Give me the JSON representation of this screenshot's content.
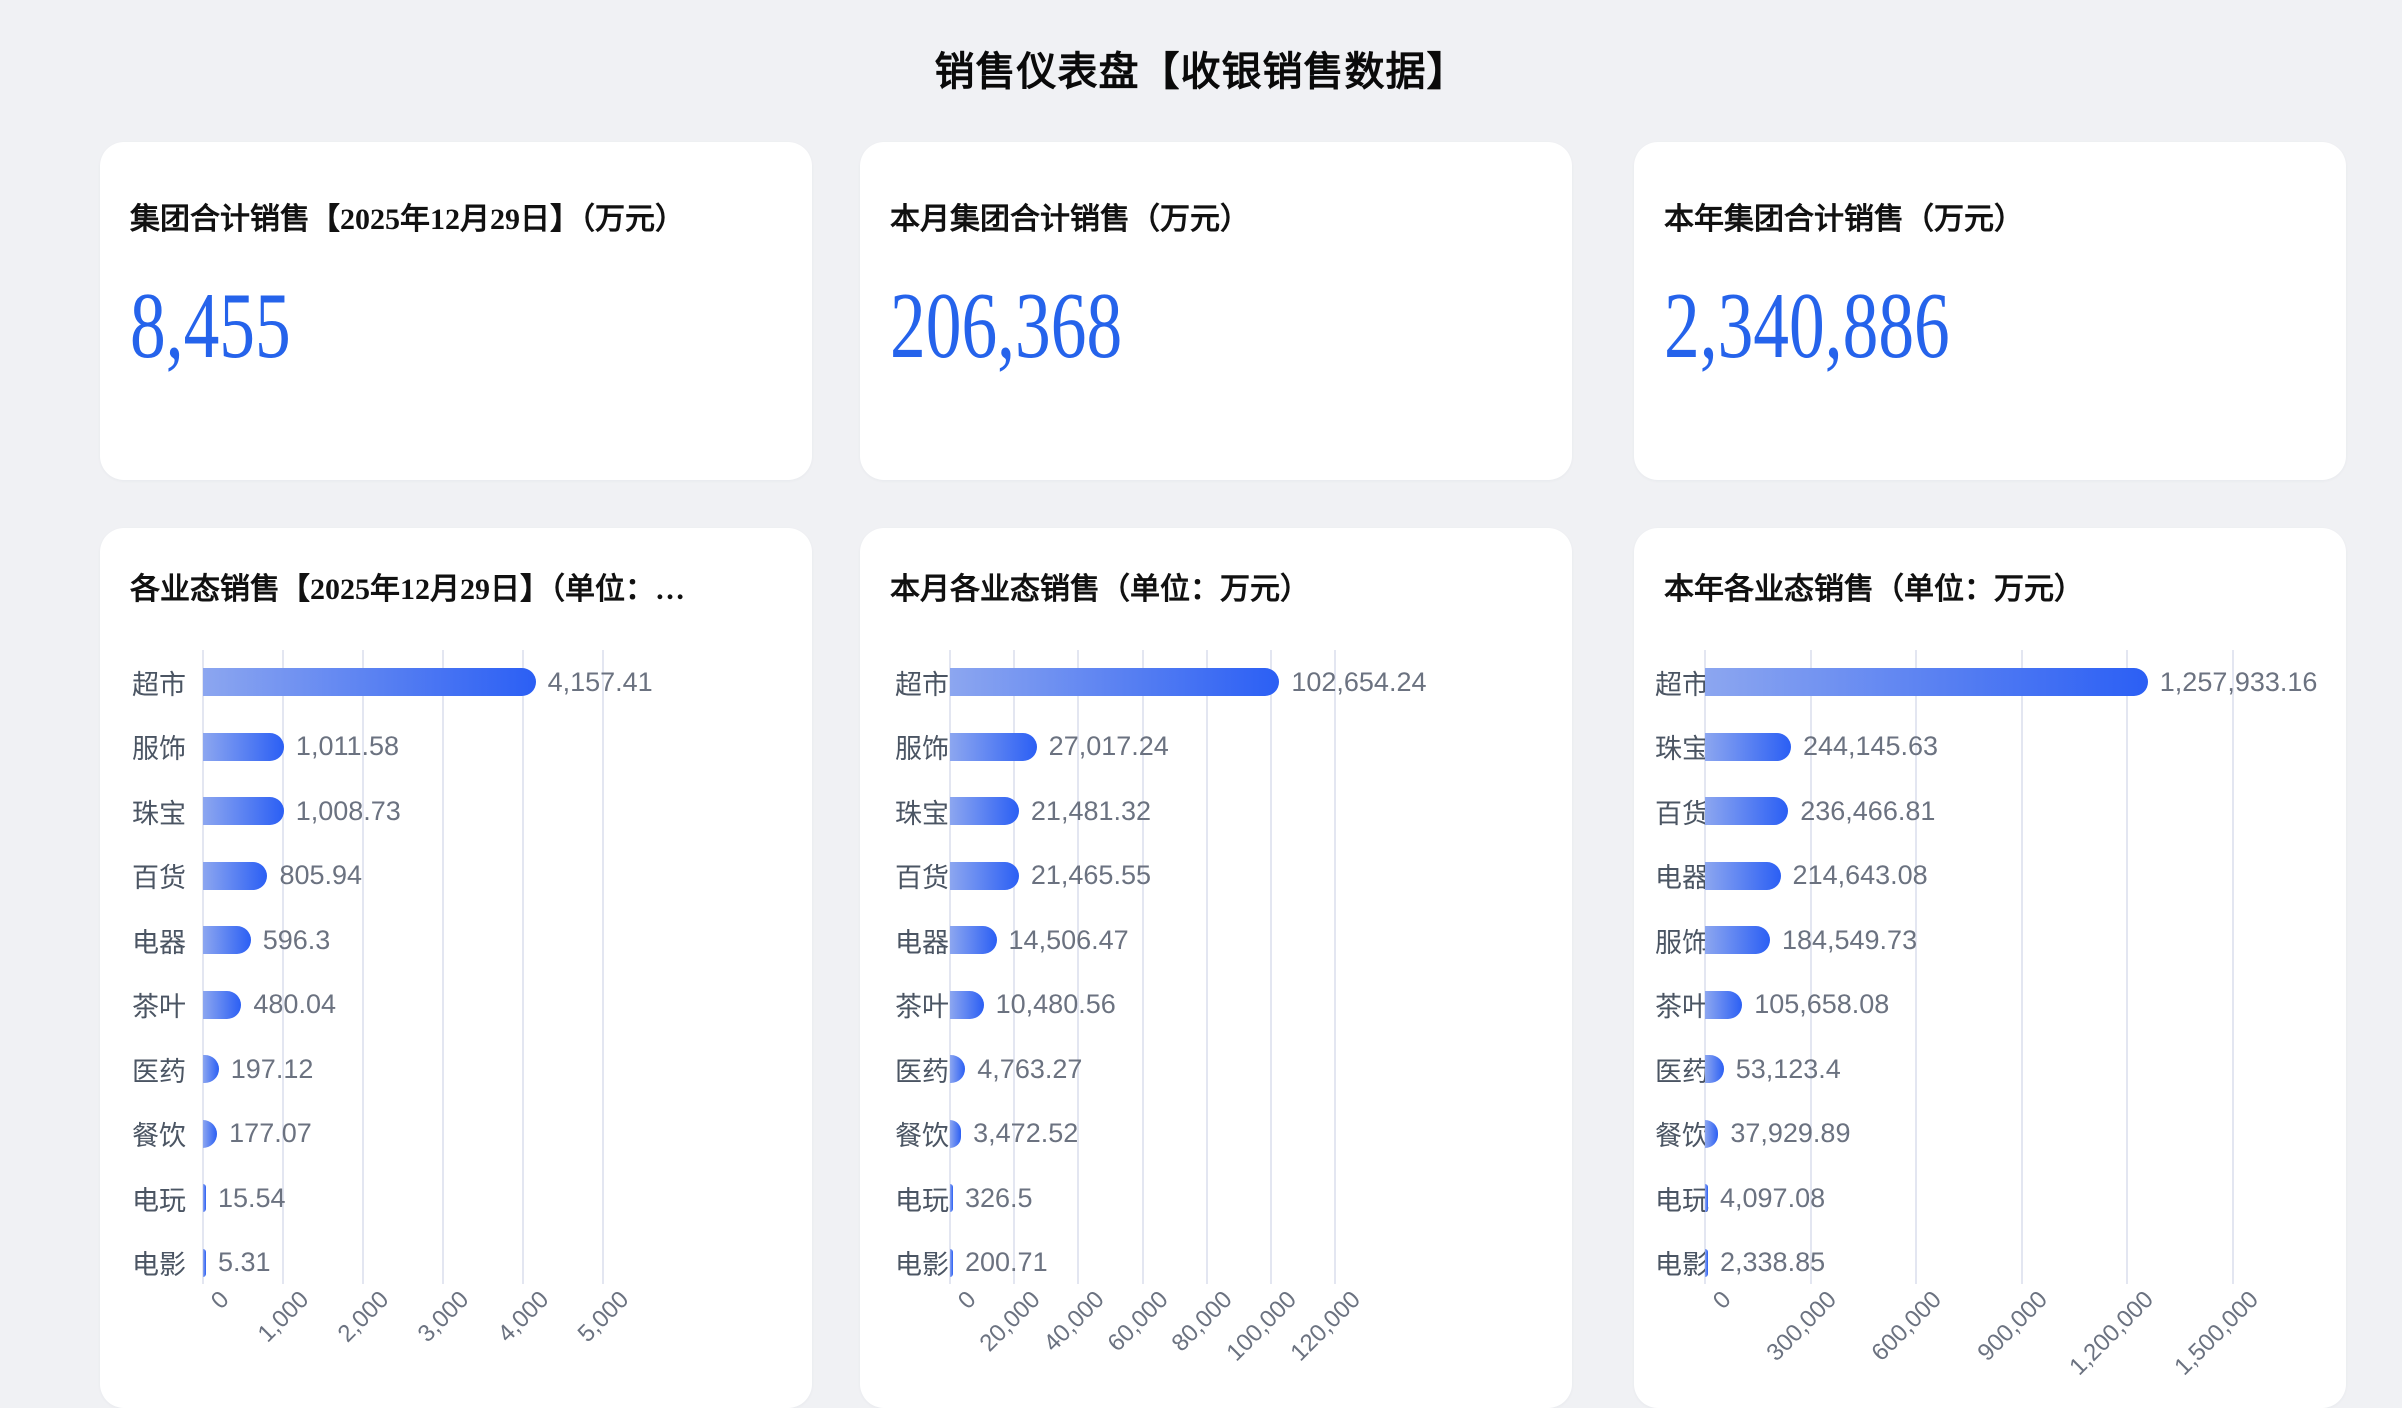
{
  "page": {
    "title": "销售仪表盘【收银销售数据】"
  },
  "kpis": [
    {
      "title": "集团合计销售【2025年12月29日】（万元）",
      "value": "8,455"
    },
    {
      "title": "本月集团合计销售（万元）",
      "value": "206,368"
    },
    {
      "title": "本年集团合计销售（万元）",
      "value": "2,340,886"
    }
  ],
  "chart_data": [
    {
      "type": "bar",
      "orientation": "horizontal",
      "title": "各业态销售【2025年12月29日】（单位：…",
      "categories": [
        "超市",
        "服饰",
        "珠宝",
        "百货",
        "电器",
        "茶叶",
        "医药",
        "餐饮",
        "电玩",
        "电影"
      ],
      "values": [
        4157.41,
        1011.58,
        1008.73,
        805.94,
        596.3,
        480.04,
        197.12,
        177.07,
        15.54,
        5.31
      ],
      "value_labels": [
        "4,157.41",
        "1,011.58",
        "1,008.73",
        "805.94",
        "596.3",
        "480.04",
        "197.12",
        "177.07",
        "15.54",
        "5.31"
      ],
      "xlim": [
        0,
        5000
      ],
      "ticks": [
        "0",
        "1,000",
        "2,000",
        "3,000",
        "4,000",
        "5,000"
      ],
      "grid": true,
      "legend": "none"
    },
    {
      "type": "bar",
      "orientation": "horizontal",
      "title": "本月各业态销售（单位：万元）",
      "categories": [
        "超市",
        "服饰",
        "珠宝",
        "百货",
        "电器",
        "茶叶",
        "医药",
        "餐饮",
        "电玩",
        "电影"
      ],
      "values": [
        102654.24,
        27017.24,
        21481.32,
        21465.55,
        14506.47,
        10480.56,
        4763.27,
        3472.52,
        326.5,
        200.71
      ],
      "value_labels": [
        "102,654.24",
        "27,017.24",
        "21,481.32",
        "21,465.55",
        "14,506.47",
        "10,480.56",
        "4,763.27",
        "3,472.52",
        "326.5",
        "200.71"
      ],
      "xlim": [
        0,
        120000
      ],
      "ticks": [
        "0",
        "20,000",
        "40,000",
        "60,000",
        "80,000",
        "100,000",
        "120,000"
      ],
      "grid": true,
      "legend": "none"
    },
    {
      "type": "bar",
      "orientation": "horizontal",
      "title": "本年各业态销售（单位：万元）",
      "categories": [
        "超市",
        "珠宝",
        "百货",
        "电器",
        "服饰",
        "茶叶",
        "医药",
        "餐饮",
        "电玩",
        "电影"
      ],
      "values": [
        1257933.16,
        244145.63,
        236466.81,
        214643.08,
        184549.73,
        105658.08,
        53123.4,
        37929.89,
        4097.08,
        2338.85
      ],
      "value_labels": [
        "1,257,933.16",
        "244,145.63",
        "236,466.81",
        "214,643.08",
        "184,549.73",
        "105,658.08",
        "53,123.4",
        "37,929.89",
        "4,097.08",
        "2,338.85"
      ],
      "xlim": [
        0,
        1500000
      ],
      "ticks": [
        "0",
        "300,000",
        "600,000",
        "900,000",
        "1,200,000",
        "1,500,000"
      ],
      "grid": true,
      "legend": "none"
    }
  ],
  "colors": {
    "background": "#f0f1f4",
    "card": "#ffffff",
    "accent_number": "#2563eb",
    "bar_gradient_start": "#8ca6f0",
    "bar_gradient_end": "#2b5ff4",
    "category_label": "#4b5563",
    "value_label": "#6b7280",
    "axis_label": "#6b7280",
    "grid_line": "#e3e6f1",
    "title": "#0a0a0a"
  }
}
